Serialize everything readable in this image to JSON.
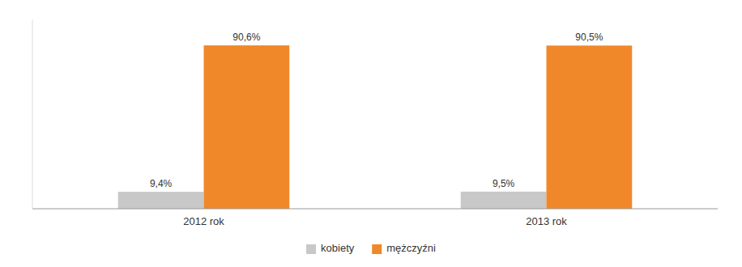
{
  "chart_data": {
    "type": "bar",
    "categories": [
      "2012 rok",
      "2013 rok"
    ],
    "series": [
      {
        "name": "kobiety",
        "color": "#c8c8c8",
        "values": [
          9.4,
          9.5
        ],
        "value_labels": [
          "9,4%",
          "9,5%"
        ]
      },
      {
        "name": "mężczyźni",
        "color": "#f0882a",
        "values": [
          90.6,
          90.5
        ],
        "value_labels": [
          "90,6%",
          "90,5%"
        ]
      }
    ],
    "ylim": [
      0,
      105
    ],
    "data_labels": true,
    "tick_labels": "x",
    "grid": false,
    "legend": "bottom"
  }
}
